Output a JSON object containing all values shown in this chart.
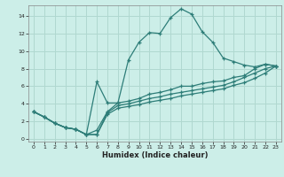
{
  "xlabel": "Humidex (Indice chaleur)",
  "bg_color": "#cceee8",
  "grid_color": "#b0d8d0",
  "line_color": "#2d7d78",
  "xlim": [
    -0.5,
    23.5
  ],
  "ylim": [
    -0.3,
    15.2
  ],
  "xticks": [
    0,
    1,
    2,
    3,
    4,
    5,
    6,
    7,
    8,
    9,
    10,
    11,
    12,
    13,
    14,
    15,
    16,
    17,
    18,
    19,
    20,
    21,
    22,
    23
  ],
  "yticks": [
    0,
    2,
    4,
    6,
    8,
    10,
    12,
    14
  ],
  "line1_x": [
    0,
    1,
    2,
    3,
    4,
    5,
    6,
    7,
    8,
    9,
    10,
    11,
    12,
    13,
    14,
    15,
    16,
    17,
    18,
    19,
    20,
    21,
    22,
    23
  ],
  "line1_y": [
    3.1,
    2.5,
    1.8,
    1.3,
    1.1,
    0.5,
    1.0,
    3.1,
    4.1,
    9.0,
    11.0,
    12.1,
    12.0,
    13.8,
    14.8,
    14.2,
    12.2,
    11.0,
    9.2,
    8.8,
    8.4,
    8.2,
    8.5,
    8.3
  ],
  "line2_x": [
    0,
    1,
    2,
    3,
    4,
    5,
    6,
    7,
    8,
    9,
    10,
    11,
    12,
    13,
    14,
    15,
    16,
    17,
    18,
    19,
    20,
    21,
    22,
    23
  ],
  "line2_y": [
    3.1,
    2.5,
    1.8,
    1.3,
    1.1,
    0.5,
    6.5,
    4.1,
    4.1,
    4.3,
    4.6,
    5.1,
    5.3,
    5.6,
    6.0,
    6.0,
    6.3,
    6.5,
    6.6,
    7.0,
    7.2,
    8.0,
    8.5,
    8.3
  ],
  "line3_x": [
    0,
    1,
    2,
    3,
    4,
    5,
    6,
    7,
    8,
    9,
    10,
    11,
    12,
    13,
    14,
    15,
    16,
    17,
    18,
    19,
    20,
    21,
    22,
    23
  ],
  "line3_y": [
    3.1,
    2.5,
    1.8,
    1.3,
    1.1,
    0.5,
    0.5,
    3.0,
    3.8,
    4.0,
    4.3,
    4.6,
    4.8,
    5.1,
    5.3,
    5.5,
    5.7,
    5.9,
    6.1,
    6.5,
    7.0,
    7.5,
    8.0,
    8.3
  ],
  "line4_x": [
    0,
    1,
    2,
    3,
    4,
    5,
    6,
    7,
    8,
    9,
    10,
    11,
    12,
    13,
    14,
    15,
    16,
    17,
    18,
    19,
    20,
    21,
    22,
    23
  ],
  "line4_y": [
    3.1,
    2.5,
    1.8,
    1.3,
    1.1,
    0.5,
    0.5,
    2.8,
    3.5,
    3.7,
    3.9,
    4.2,
    4.4,
    4.6,
    4.9,
    5.1,
    5.3,
    5.5,
    5.7,
    6.1,
    6.4,
    6.9,
    7.5,
    8.3
  ]
}
